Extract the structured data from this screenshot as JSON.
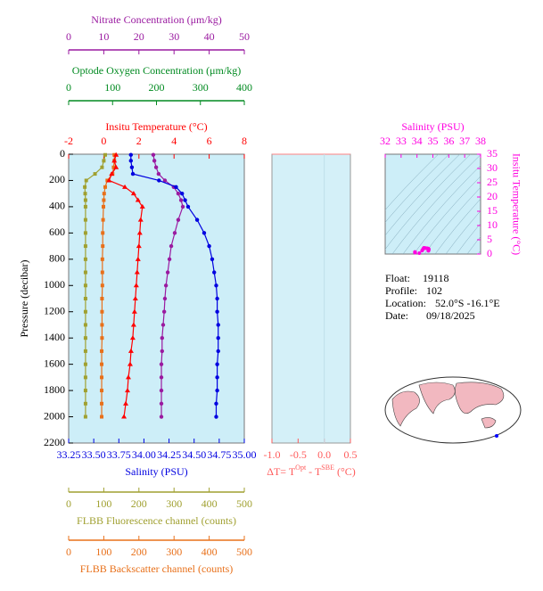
{
  "chart_data": [
    {
      "type": "profile",
      "y_label": "Pressure (decibar)",
      "ylim": [
        0,
        2200
      ],
      "yticks": [
        0,
        200,
        400,
        600,
        800,
        1000,
        1200,
        1400,
        1600,
        1800,
        2000,
        2200
      ],
      "pressure": [
        5,
        50,
        100,
        150,
        200,
        250,
        300,
        350,
        400,
        500,
        600,
        700,
        800,
        900,
        1000,
        1100,
        1200,
        1300,
        1400,
        1500,
        1600,
        1700,
        1800,
        1900,
        2000
      ],
      "axes": [
        {
          "name": "Nitrate Concentration (μm/kg)",
          "color": "#9a1aa0",
          "xlim": [
            0,
            50
          ],
          "xticks": [
            0,
            10,
            20,
            30,
            40,
            50
          ]
        },
        {
          "name": "Optode Oxygen Concentration (μm/kg)",
          "color": "#008a20",
          "xlim": [
            0,
            400
          ],
          "xticks": [
            0,
            100,
            200,
            300,
            400
          ]
        },
        {
          "name": "Insitu Temperature (°C)",
          "color": "#ff0000",
          "xlim": [
            -2,
            8
          ],
          "xticks": [
            -2,
            0,
            2,
            4,
            6,
            8
          ]
        },
        {
          "name": "Salinity (PSU)",
          "color": "#0000e0",
          "xlim": [
            33.25,
            35
          ],
          "xticks": [
            33.25,
            {
              "value": 33.5,
              "label": "33.50"
            },
            33.75,
            {
              "value": 34,
              "label": "34.00"
            },
            34.25,
            {
              "value": 34.5,
              "label": "34.50"
            },
            34.75,
            {
              "value": 35,
              "label": "35.00"
            }
          ]
        },
        {
          "name": "FLBB Fluorescence channel (counts)",
          "color": "#a0a030",
          "xlim": [
            0,
            500
          ],
          "xticks": [
            0,
            100,
            200,
            300,
            400,
            500
          ]
        },
        {
          "name": "FLBB Backscatter channel (counts)",
          "color": "#e8701a",
          "xlim": [
            0,
            500
          ],
          "xticks": [
            0,
            100,
            200,
            300,
            400,
            500
          ]
        }
      ],
      "series": [
        {
          "axis": 4,
          "marker": "square",
          "color": "#a0a030",
          "values": [
            104,
            100,
            95,
            75,
            50,
            46,
            47,
            48,
            48,
            48,
            48,
            48,
            48,
            48,
            48,
            48,
            48,
            48,
            48,
            48,
            48,
            48,
            48,
            48,
            48
          ]
        },
        {
          "axis": 5,
          "marker": "square",
          "color": "#e8701a",
          "values": [
            130,
            130,
            128,
            125,
            110,
            104,
            101,
            100,
            99,
            98,
            97,
            97,
            96,
            96,
            96,
            95,
            95,
            95,
            95,
            94,
            94,
            94,
            94,
            94,
            94
          ]
        },
        {
          "axis": 0,
          "marker": "circle",
          "color": "#9a1aa0",
          "values": [
            24.1,
            24.4,
            24.9,
            25.6,
            27.4,
            29.9,
            31.2,
            32.0,
            32.5,
            31.2,
            30.2,
            29.2,
            28.7,
            28.2,
            27.7,
            27.4,
            27.2,
            26.9,
            26.6,
            26.6,
            26.4,
            26.4,
            26.4,
            26.4,
            26.4
          ]
        },
        {
          "axis": 2,
          "marker": "triangle",
          "color": "#ff0000",
          "values": [
            0.7,
            0.6,
            0.7,
            0.45,
            0.3,
            1.2,
            1.7,
            1.95,
            2.2,
            2.1,
            2.05,
            2.0,
            1.95,
            1.9,
            1.85,
            1.8,
            1.75,
            1.7,
            1.65,
            1.55,
            1.5,
            1.4,
            1.35,
            1.25,
            1.15
          ]
        },
        {
          "axis": 3,
          "marker": "circle",
          "color": "#0000e0",
          "values": [
            33.87,
            33.87,
            33.88,
            33.89,
            34.15,
            34.32,
            34.38,
            34.41,
            34.44,
            34.53,
            34.6,
            34.65,
            34.68,
            34.7,
            34.72,
            34.73,
            34.73,
            34.74,
            34.74,
            34.74,
            34.73,
            34.73,
            34.73,
            34.72,
            34.72
          ]
        }
      ]
    },
    {
      "type": "delta",
      "color": "#ff5a5a",
      "x_label": [
        "ΔT= T",
        "Opt",
        " - T",
        "SBE",
        " (°C)"
      ],
      "xlim": [
        -1,
        0.5
      ],
      "xticks": [
        {
          "value": -1,
          "label": "-1.0"
        },
        -0.5,
        {
          "value": 0,
          "label": "0.0"
        },
        0.5
      ],
      "ylim": [
        0,
        2200
      ]
    },
    {
      "type": "ts",
      "color": "#ff00e0",
      "title": "Salinity (PSU)",
      "y_label": "Insitu Temperature (°C)",
      "xlim": [
        32,
        38
      ],
      "xticks": [
        32,
        33,
        34,
        35,
        36,
        37,
        38
      ],
      "ylim": [
        0,
        35
      ],
      "yticks": [
        0,
        5,
        10,
        15,
        20,
        25,
        30,
        35
      ]
    }
  ],
  "float_info": [
    [
      "Float:",
      "19118"
    ],
    [
      "Profile:",
      "102"
    ],
    [
      "Location:",
      "52.0°S  -16.1°E"
    ],
    [
      "Date:",
      "09/18/2025"
    ]
  ]
}
